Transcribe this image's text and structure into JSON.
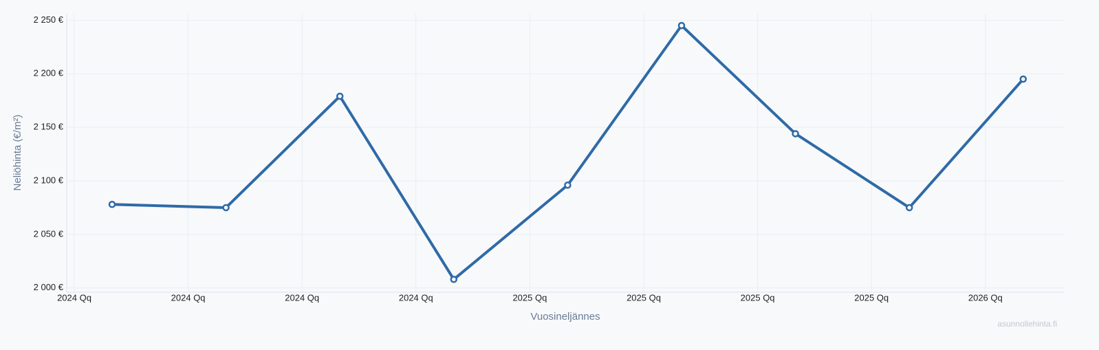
{
  "chart_data": {
    "type": "line",
    "x_label": "Vuosineljännes",
    "y_label": "Neliöhinta (€/m²)",
    "watermark": "asunnollehinta.fi",
    "categories": [
      "2024 Qq",
      "2024 Qq",
      "2024 Qq",
      "2024 Qq",
      "2025 Qq",
      "2025 Qq",
      "2025 Qq",
      "2025 Qq",
      "2026 Qq"
    ],
    "values": [
      2078,
      2075,
      2179,
      2008,
      2096,
      2245,
      2144,
      2075,
      2195
    ],
    "color": "#2f6aa6",
    "ylim": [
      1996,
      2256
    ],
    "yticks": [
      {
        "value": 2000,
        "label": "2 000 €"
      },
      {
        "value": 2050,
        "label": "2 050 €"
      },
      {
        "value": 2100,
        "label": "2 100 €"
      },
      {
        "value": 2150,
        "label": "2 150 €"
      },
      {
        "value": 2200,
        "label": "2 200 €"
      },
      {
        "value": 2250,
        "label": "2 250 €"
      }
    ],
    "grid": true
  }
}
